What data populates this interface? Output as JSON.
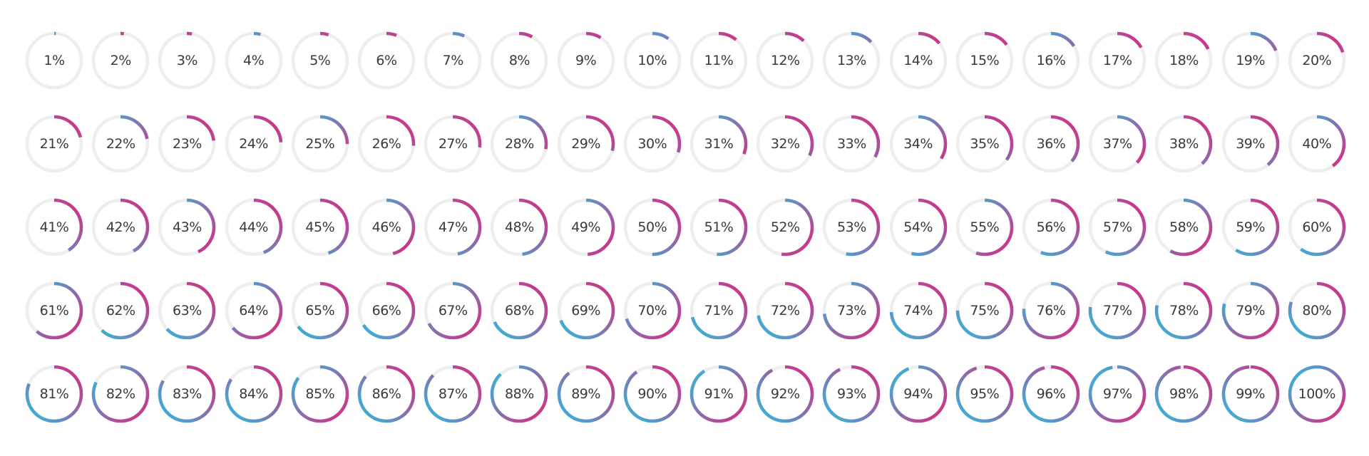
{
  "colors": {
    "track": "#eeeeee",
    "pink": "#e0237f",
    "cyan": "#2bbfdf",
    "text": "#3a3a3a"
  },
  "progress_rings": [
    {
      "label": "1%",
      "value": 1
    },
    {
      "label": "2%",
      "value": 2
    },
    {
      "label": "3%",
      "value": 3
    },
    {
      "label": "4%",
      "value": 4
    },
    {
      "label": "5%",
      "value": 5
    },
    {
      "label": "6%",
      "value": 6
    },
    {
      "label": "7%",
      "value": 7
    },
    {
      "label": "8%",
      "value": 8
    },
    {
      "label": "9%",
      "value": 9
    },
    {
      "label": "10%",
      "value": 10
    },
    {
      "label": "11%",
      "value": 11
    },
    {
      "label": "12%",
      "value": 12
    },
    {
      "label": "13%",
      "value": 13
    },
    {
      "label": "14%",
      "value": 14
    },
    {
      "label": "15%",
      "value": 15
    },
    {
      "label": "16%",
      "value": 16
    },
    {
      "label": "17%",
      "value": 17
    },
    {
      "label": "18%",
      "value": 18
    },
    {
      "label": "19%",
      "value": 19
    },
    {
      "label": "20%",
      "value": 20
    },
    {
      "label": "21%",
      "value": 21
    },
    {
      "label": "22%",
      "value": 22
    },
    {
      "label": "23%",
      "value": 23
    },
    {
      "label": "24%",
      "value": 24
    },
    {
      "label": "25%",
      "value": 25
    },
    {
      "label": "26%",
      "value": 26
    },
    {
      "label": "27%",
      "value": 27
    },
    {
      "label": "28%",
      "value": 28
    },
    {
      "label": "29%",
      "value": 29
    },
    {
      "label": "30%",
      "value": 30
    },
    {
      "label": "31%",
      "value": 31
    },
    {
      "label": "32%",
      "value": 32
    },
    {
      "label": "33%",
      "value": 33
    },
    {
      "label": "34%",
      "value": 34
    },
    {
      "label": "35%",
      "value": 35
    },
    {
      "label": "36%",
      "value": 36
    },
    {
      "label": "37%",
      "value": 37
    },
    {
      "label": "38%",
      "value": 38
    },
    {
      "label": "39%",
      "value": 39
    },
    {
      "label": "40%",
      "value": 40
    },
    {
      "label": "41%",
      "value": 41
    },
    {
      "label": "42%",
      "value": 42
    },
    {
      "label": "43%",
      "value": 43
    },
    {
      "label": "44%",
      "value": 44
    },
    {
      "label": "45%",
      "value": 45
    },
    {
      "label": "46%",
      "value": 46
    },
    {
      "label": "47%",
      "value": 47
    },
    {
      "label": "48%",
      "value": 48
    },
    {
      "label": "49%",
      "value": 49
    },
    {
      "label": "50%",
      "value": 50
    },
    {
      "label": "51%",
      "value": 51
    },
    {
      "label": "52%",
      "value": 52
    },
    {
      "label": "53%",
      "value": 53
    },
    {
      "label": "54%",
      "value": 54
    },
    {
      "label": "55%",
      "value": 55
    },
    {
      "label": "56%",
      "value": 56
    },
    {
      "label": "57%",
      "value": 57
    },
    {
      "label": "58%",
      "value": 58
    },
    {
      "label": "59%",
      "value": 59
    },
    {
      "label": "60%",
      "value": 60
    },
    {
      "label": "61%",
      "value": 61
    },
    {
      "label": "62%",
      "value": 62
    },
    {
      "label": "63%",
      "value": 63
    },
    {
      "label": "64%",
      "value": 64
    },
    {
      "label": "65%",
      "value": 65
    },
    {
      "label": "66%",
      "value": 66
    },
    {
      "label": "67%",
      "value": 67
    },
    {
      "label": "68%",
      "value": 68
    },
    {
      "label": "69%",
      "value": 69
    },
    {
      "label": "70%",
      "value": 70
    },
    {
      "label": "71%",
      "value": 71
    },
    {
      "label": "72%",
      "value": 72
    },
    {
      "label": "73%",
      "value": 73
    },
    {
      "label": "74%",
      "value": 74
    },
    {
      "label": "75%",
      "value": 75
    },
    {
      "label": "76%",
      "value": 76
    },
    {
      "label": "77%",
      "value": 77
    },
    {
      "label": "78%",
      "value": 78
    },
    {
      "label": "79%",
      "value": 79
    },
    {
      "label": "80%",
      "value": 80
    },
    {
      "label": "81%",
      "value": 81
    },
    {
      "label": "82%",
      "value": 82
    },
    {
      "label": "83%",
      "value": 83
    },
    {
      "label": "84%",
      "value": 84
    },
    {
      "label": "85%",
      "value": 85
    },
    {
      "label": "86%",
      "value": 86
    },
    {
      "label": "87%",
      "value": 87
    },
    {
      "label": "88%",
      "value": 88
    },
    {
      "label": "89%",
      "value": 89
    },
    {
      "label": "90%",
      "value": 90
    },
    {
      "label": "91%",
      "value": 91
    },
    {
      "label": "92%",
      "value": 92
    },
    {
      "label": "93%",
      "value": 93
    },
    {
      "label": "94%",
      "value": 94
    },
    {
      "label": "95%",
      "value": 95
    },
    {
      "label": "96%",
      "value": 96
    },
    {
      "label": "97%",
      "value": 97
    },
    {
      "label": "98%",
      "value": 98
    },
    {
      "label": "99%",
      "value": 99
    },
    {
      "label": "100%",
      "value": 100
    }
  ]
}
